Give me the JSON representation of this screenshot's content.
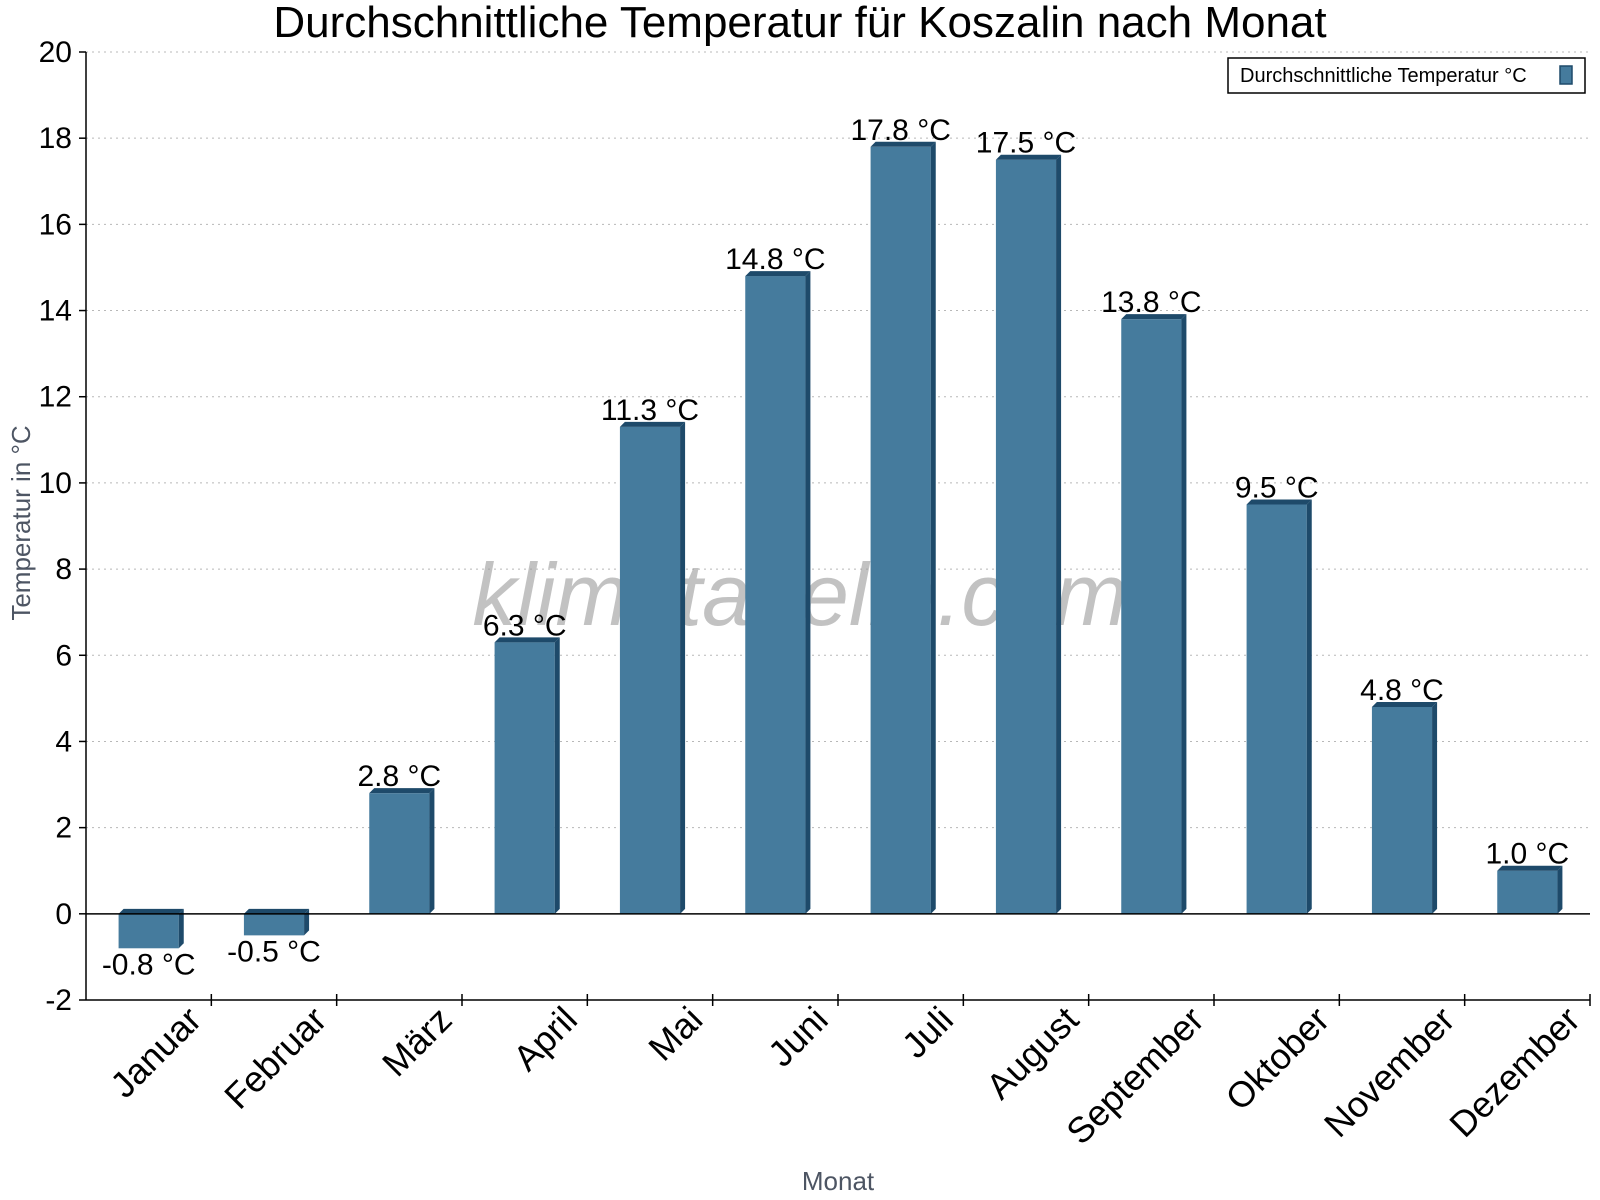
{
  "chart_data": {
    "type": "bar",
    "title": "Durchschnittliche Temperatur für Koszalin nach Monat",
    "xlabel": "Monat",
    "ylabel": "Temperatur in °C",
    "ylim": [
      -2,
      20
    ],
    "yticks": [
      -2,
      0,
      2,
      4,
      6,
      8,
      10,
      12,
      14,
      16,
      18,
      20
    ],
    "grid": true,
    "legend_position": "top-right",
    "categories": [
      "Januar",
      "Februar",
      "März",
      "April",
      "Mai",
      "Juni",
      "Juli",
      "August",
      "September",
      "Oktober",
      "November",
      "Dezember"
    ],
    "series": [
      {
        "name": "Durchschnittliche Temperatur °C",
        "values": [
          -0.8,
          -0.5,
          2.8,
          6.3,
          11.3,
          14.8,
          17.8,
          17.5,
          13.8,
          9.5,
          4.8,
          1.0
        ],
        "labels": [
          "-0.8 °C",
          "-0.5 °C",
          "2.8 °C",
          "6.3 °C",
          "11.3 °C",
          "14.8 °C",
          "17.8 °C",
          "17.5 °C",
          "13.8 °C",
          "9.5 °C",
          "4.8 °C",
          "1.0 °C"
        ],
        "color": "#457b9d",
        "edge_color": "#1e4a6a"
      }
    ],
    "watermark": "klimatabelle.com"
  }
}
